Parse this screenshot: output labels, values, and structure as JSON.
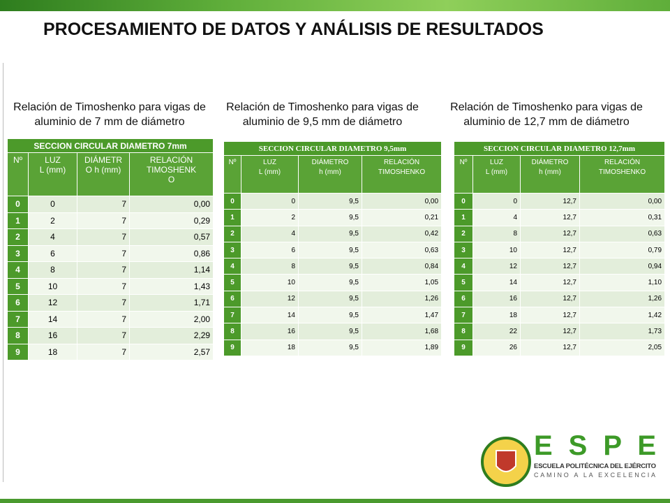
{
  "header": {
    "title": "PROCESAMIENTO DE DATOS Y ANÁLISIS DE RESULTADOS"
  },
  "sections": [
    {
      "caption": "Relación de Timoshenko para vigas de aluminio de 7 mm de diámetro",
      "table": {
        "title": "SECCION CIRCULAR DIAMETRO 7mm",
        "headers": [
          [
            "Nº"
          ],
          [
            "LUZ",
            "L (mm)"
          ],
          [
            "DIÁMETR",
            "O h (mm)"
          ],
          [
            "RELACIÓN",
            "TIMOSHENK",
            "O"
          ]
        ],
        "rows": [
          [
            "0",
            "0",
            "7",
            "0,00"
          ],
          [
            "1",
            "2",
            "7",
            "0,29"
          ],
          [
            "2",
            "4",
            "7",
            "0,57"
          ],
          [
            "3",
            "6",
            "7",
            "0,86"
          ],
          [
            "4",
            "8",
            "7",
            "1,14"
          ],
          [
            "5",
            "10",
            "7",
            "1,43"
          ],
          [
            "6",
            "12",
            "7",
            "1,71"
          ],
          [
            "7",
            "14",
            "7",
            "2,00"
          ],
          [
            "8",
            "16",
            "7",
            "2,29"
          ],
          [
            "9",
            "18",
            "7",
            "2,57"
          ]
        ]
      }
    },
    {
      "caption": "Relación de Timoshenko para vigas de aluminio de 9,5 mm de diámetro",
      "table": {
        "title": "SECCION CIRCULAR  DIAMETRO  9,5mm",
        "headers": [
          [
            "Nº"
          ],
          [
            "LUZ",
            "L (mm)"
          ],
          [
            "DIÁMETRO",
            "h (mm)"
          ],
          [
            "RELACIÓN",
            "TIMOSHENKO"
          ]
        ],
        "rows": [
          [
            "0",
            "0",
            "9,5",
            "0,00"
          ],
          [
            "1",
            "2",
            "9,5",
            "0,21"
          ],
          [
            "2",
            "4",
            "9,5",
            "0,42"
          ],
          [
            "3",
            "6",
            "9,5",
            "0,63"
          ],
          [
            "4",
            "8",
            "9,5",
            "0,84"
          ],
          [
            "5",
            "10",
            "9,5",
            "1,05"
          ],
          [
            "6",
            "12",
            "9,5",
            "1,26"
          ],
          [
            "7",
            "14",
            "9,5",
            "1,47"
          ],
          [
            "8",
            "16",
            "9,5",
            "1,68"
          ],
          [
            "9",
            "18",
            "9,5",
            "1,89"
          ]
        ]
      }
    },
    {
      "caption": "Relación de Timoshenko para vigas de aluminio de 12,7 mm de diámetro",
      "table": {
        "title": "SECCION CIRCULAR  DIAMETRO  12,7mm",
        "headers": [
          [
            "Nº"
          ],
          [
            "LUZ",
            "L (mm)"
          ],
          [
            "DIÁMETRO",
            "h (mm)"
          ],
          [
            "RELACIÓN",
            "TIMOSHENKO"
          ]
        ],
        "rows": [
          [
            "0",
            "0",
            "12,7",
            "0,00"
          ],
          [
            "1",
            "4",
            "12,7",
            "0,31"
          ],
          [
            "2",
            "8",
            "12,7",
            "0,63"
          ],
          [
            "3",
            "10",
            "12,7",
            "0,79"
          ],
          [
            "4",
            "12",
            "12,7",
            "0,94"
          ],
          [
            "5",
            "14",
            "12,7",
            "1,10"
          ],
          [
            "6",
            "16",
            "12,7",
            "1,26"
          ],
          [
            "7",
            "18",
            "12,7",
            "1,42"
          ],
          [
            "8",
            "22",
            "12,7",
            "1,73"
          ],
          [
            "9",
            "26",
            "12,7",
            "2,05"
          ]
        ]
      }
    }
  ],
  "logo": {
    "letters": "E S P E",
    "name": "ESCUELA POLITÉCNICA DEL EJÉRCITO",
    "motto": "CAMINO A LA EXCELENCIA"
  }
}
